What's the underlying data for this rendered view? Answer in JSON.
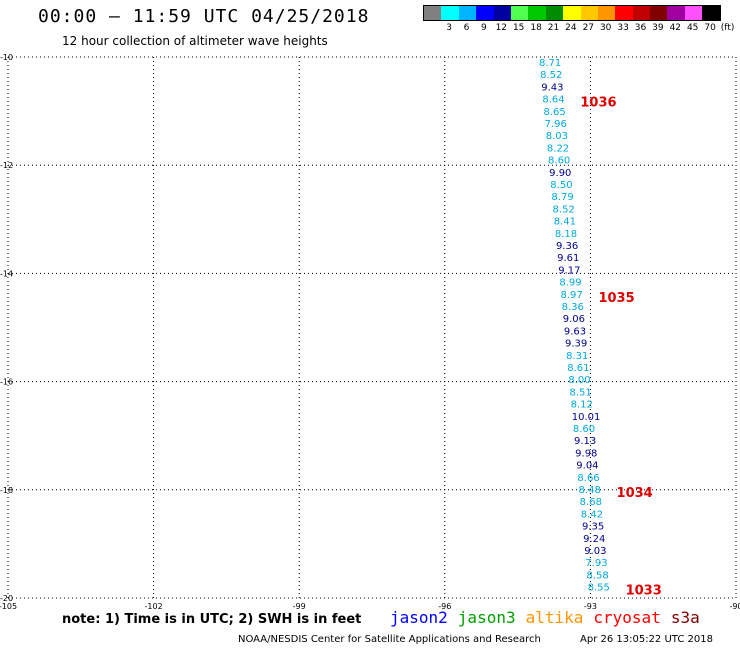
{
  "header": {
    "title": "00:00 – 11:59 UTC 04/25/2018",
    "subtitle": "12 hour collection of altimeter wave heights"
  },
  "legend": {
    "unit": "(ft)",
    "items": [
      {
        "label": "",
        "color": "#808080"
      },
      {
        "label": "3",
        "color": "#00ffff"
      },
      {
        "label": "6",
        "color": "#00b4ff"
      },
      {
        "label": "9",
        "color": "#0000ff"
      },
      {
        "label": "12",
        "color": "#0000a0"
      },
      {
        "label": "15",
        "color": "#50ff50"
      },
      {
        "label": "18",
        "color": "#00c800"
      },
      {
        "label": "21",
        "color": "#008c00"
      },
      {
        "label": "24",
        "color": "#ffff00"
      },
      {
        "label": "27",
        "color": "#ffc800"
      },
      {
        "label": "30",
        "color": "#ff9600"
      },
      {
        "label": "33",
        "color": "#ff0000"
      },
      {
        "label": "36",
        "color": "#c00000"
      },
      {
        "label": "39",
        "color": "#800000"
      },
      {
        "label": "42",
        "color": "#a000a0"
      },
      {
        "label": "45",
        "color": "#ff50ff"
      },
      {
        "label": "70",
        "color": "#000000"
      }
    ]
  },
  "map": {
    "lon_ticks": [
      "-105",
      "-102",
      "-99",
      "-96",
      "-93",
      "-90"
    ],
    "lat_ticks": [
      "-10",
      "-12",
      "-14",
      "-16",
      "-18",
      "-20"
    ],
    "lon_range": [
      -105,
      -90
    ],
    "lat_range": [
      -10,
      -20
    ],
    "colors": {
      "light": "#00aadd",
      "dark": "#00008c",
      "pass": "#e00000"
    },
    "wave_heights": [
      {
        "v": "8.71",
        "c": "light"
      },
      {
        "v": "8.52",
        "c": "light"
      },
      {
        "v": "9.43",
        "c": "dark"
      },
      {
        "v": "8.64",
        "c": "light"
      },
      {
        "v": "8.65",
        "c": "light"
      },
      {
        "v": "7.96",
        "c": "light"
      },
      {
        "v": "8.03",
        "c": "light"
      },
      {
        "v": "8.22",
        "c": "light"
      },
      {
        "v": "8.60",
        "c": "light"
      },
      {
        "v": "9.90",
        "c": "dark"
      },
      {
        "v": "8.50",
        "c": "light"
      },
      {
        "v": "8.79",
        "c": "light"
      },
      {
        "v": "8.52",
        "c": "light"
      },
      {
        "v": "8.41",
        "c": "light"
      },
      {
        "v": "8.18",
        "c": "light"
      },
      {
        "v": "9.36",
        "c": "dark"
      },
      {
        "v": "9.61",
        "c": "dark"
      },
      {
        "v": "9.17",
        "c": "dark"
      },
      {
        "v": "8.99",
        "c": "light"
      },
      {
        "v": "8.97",
        "c": "light"
      },
      {
        "v": "8.36",
        "c": "light"
      },
      {
        "v": "9.06",
        "c": "dark"
      },
      {
        "v": "9.63",
        "c": "dark"
      },
      {
        "v": "9.39",
        "c": "dark"
      },
      {
        "v": "8.31",
        "c": "light"
      },
      {
        "v": "8.61",
        "c": "light"
      },
      {
        "v": "8.00",
        "c": "light"
      },
      {
        "v": "8.51",
        "c": "light"
      },
      {
        "v": "8.12",
        "c": "light"
      },
      {
        "v": "10.01",
        "c": "dark"
      },
      {
        "v": "8.60",
        "c": "light"
      },
      {
        "v": "9.13",
        "c": "dark"
      },
      {
        "v": "9.98",
        "c": "dark"
      },
      {
        "v": "9.04",
        "c": "dark"
      },
      {
        "v": "8.66",
        "c": "light"
      },
      {
        "v": "8.48",
        "c": "light"
      },
      {
        "v": "8.68",
        "c": "light"
      },
      {
        "v": "8.42",
        "c": "light"
      },
      {
        "v": "9.35",
        "c": "dark"
      },
      {
        "v": "9.24",
        "c": "dark"
      },
      {
        "v": "9.03",
        "c": "dark"
      },
      {
        "v": "7.93",
        "c": "light"
      },
      {
        "v": "8.58",
        "c": "light"
      },
      {
        "v": "8.55",
        "c": "light"
      }
    ],
    "pass_labels": [
      {
        "text": "1036",
        "row": 3
      },
      {
        "text": "1035",
        "row": 19
      },
      {
        "text": "1034",
        "row": 35
      },
      {
        "text": "1033",
        "row": 43
      }
    ]
  },
  "footer": {
    "note": "note:  1) Time is in UTC;  2) SWH is in feet",
    "satellites": [
      {
        "name": "jason2",
        "color": "#0000ff"
      },
      {
        "name": "jason3",
        "color": "#00a000"
      },
      {
        "name": "altika",
        "color": "#ff9600"
      },
      {
        "name": "cryosat",
        "color": "#ff0000"
      },
      {
        "name": "s3a",
        "color": "#800000"
      }
    ],
    "credit": "NOAA/NESDIS Center for Satellite Applications and Research",
    "timestamp": "Apr 26 13:05:22 UTC 2018"
  }
}
